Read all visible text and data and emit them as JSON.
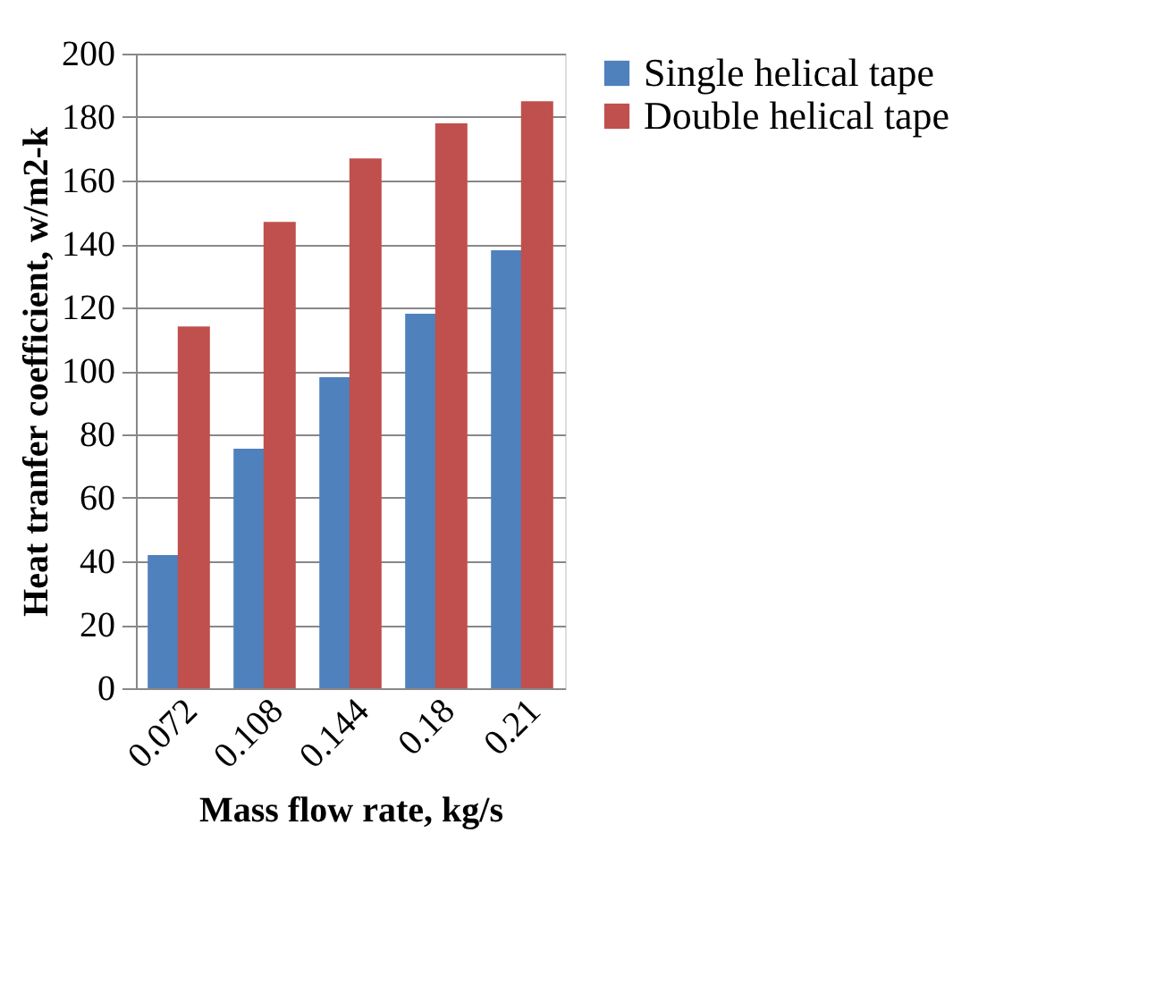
{
  "chart_data": {
    "type": "bar",
    "xlabel": "Mass flow rate, kg/s",
    "ylabel": "Heat tranfer coefficient, w/m2-k",
    "categories": [
      "0.072",
      "0.108",
      "0.144",
      "0.18",
      "0.21"
    ],
    "series": [
      {
        "name": "Single helical tape",
        "color": "#4f81bd",
        "values": [
          42,
          75.5,
          98,
          118,
          138
        ]
      },
      {
        "name": "Double helical tape",
        "color": "#c0504d",
        "values": [
          114,
          147,
          167,
          178,
          185
        ]
      }
    ],
    "ylim": [
      0,
      200
    ],
    "yticks": [
      0,
      20,
      40,
      60,
      80,
      100,
      120,
      140,
      160,
      180,
      200
    ],
    "grid": "y",
    "legend": "right"
  }
}
